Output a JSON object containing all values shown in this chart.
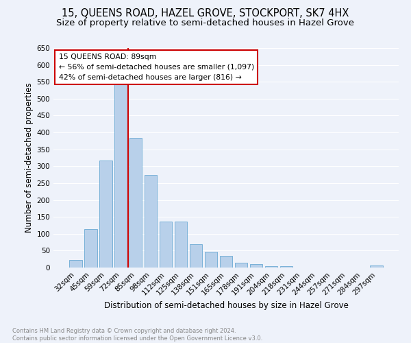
{
  "title": "15, QUEENS ROAD, HAZEL GROVE, STOCKPORT, SK7 4HX",
  "subtitle": "Size of property relative to semi-detached houses in Hazel Grove",
  "xlabel": "Distribution of semi-detached houses by size in Hazel Grove",
  "ylabel": "Number of semi-detached properties",
  "footnote": "Contains HM Land Registry data © Crown copyright and database right 2024.\nContains public sector information licensed under the Open Government Licence v3.0.",
  "categories": [
    "32sqm",
    "45sqm",
    "59sqm",
    "72sqm",
    "85sqm",
    "98sqm",
    "112sqm",
    "125sqm",
    "138sqm",
    "151sqm",
    "165sqm",
    "178sqm",
    "191sqm",
    "204sqm",
    "218sqm",
    "231sqm",
    "244sqm",
    "257sqm",
    "271sqm",
    "284sqm",
    "297sqm"
  ],
  "values": [
    22,
    113,
    317,
    545,
    383,
    275,
    137,
    137,
    70,
    47,
    35,
    15,
    10,
    4,
    4,
    0,
    0,
    0,
    0,
    0,
    7
  ],
  "bar_color": "#b8d0ea",
  "bar_edge_color": "#6aaad4",
  "vline_color": "#cc0000",
  "annotation_text": "15 QUEENS ROAD: 89sqm\n← 56% of semi-detached houses are smaller (1,097)\n42% of semi-detached houses are larger (816) →",
  "annotation_box_color": "#ffffff",
  "annotation_box_edge": "#cc0000",
  "ylim": [
    0,
    650
  ],
  "yticks": [
    0,
    50,
    100,
    150,
    200,
    250,
    300,
    350,
    400,
    450,
    500,
    550,
    600,
    650
  ],
  "bg_color": "#eef2fa",
  "grid_color": "#ffffff",
  "title_fontsize": 10.5,
  "subtitle_fontsize": 9.5,
  "axis_label_fontsize": 8.5,
  "tick_fontsize": 7.5,
  "footnote_fontsize": 6.0,
  "footnote_color": "#888888"
}
